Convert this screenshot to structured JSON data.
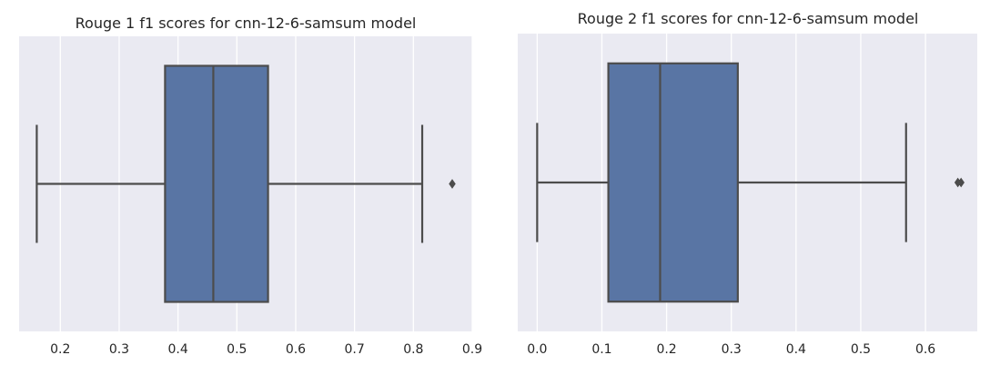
{
  "chart_data": [
    {
      "type": "box",
      "title": "Rouge 1 f1 scores for cnn-12-6-samsum model",
      "xlabel": "",
      "ylabel": "",
      "xlim": [
        0.13,
        0.9
      ],
      "xticks": [
        0.2,
        0.3,
        0.4,
        0.5,
        0.6,
        0.7,
        0.8,
        0.9
      ],
      "xtick_labels": [
        "0.2",
        "0.3",
        "0.4",
        "0.5",
        "0.6",
        "0.7",
        "0.8",
        "0.9"
      ],
      "grid": true,
      "orientation": "horizontal",
      "box": {
        "whisker_low": 0.16,
        "q1": 0.378,
        "median": 0.46,
        "q3": 0.553,
        "whisker_high": 0.815
      },
      "outliers": [
        0.866
      ],
      "color": "#5975a4"
    },
    {
      "type": "box",
      "title": "Rouge 2 f1 scores for cnn-12-6-samsum model",
      "xlabel": "",
      "ylabel": "",
      "xlim": [
        -0.03,
        0.68
      ],
      "xticks": [
        0.0,
        0.1,
        0.2,
        0.3,
        0.4,
        0.5,
        0.6
      ],
      "xtick_labels": [
        "0.0",
        "0.1",
        "0.2",
        "0.3",
        "0.4",
        "0.5",
        "0.6"
      ],
      "grid": true,
      "orientation": "horizontal",
      "box": {
        "whisker_low": 0.0,
        "q1": 0.11,
        "median": 0.19,
        "q3": 0.31,
        "whisker_high": 0.57
      },
      "outliers": [
        0.65,
        0.655
      ],
      "color": "#5975a4"
    }
  ],
  "colors": {
    "panel_bg": "#eaeaf2",
    "grid": "#ffffff",
    "box_fill": "#5975a4",
    "line": "#4c4c4c"
  }
}
